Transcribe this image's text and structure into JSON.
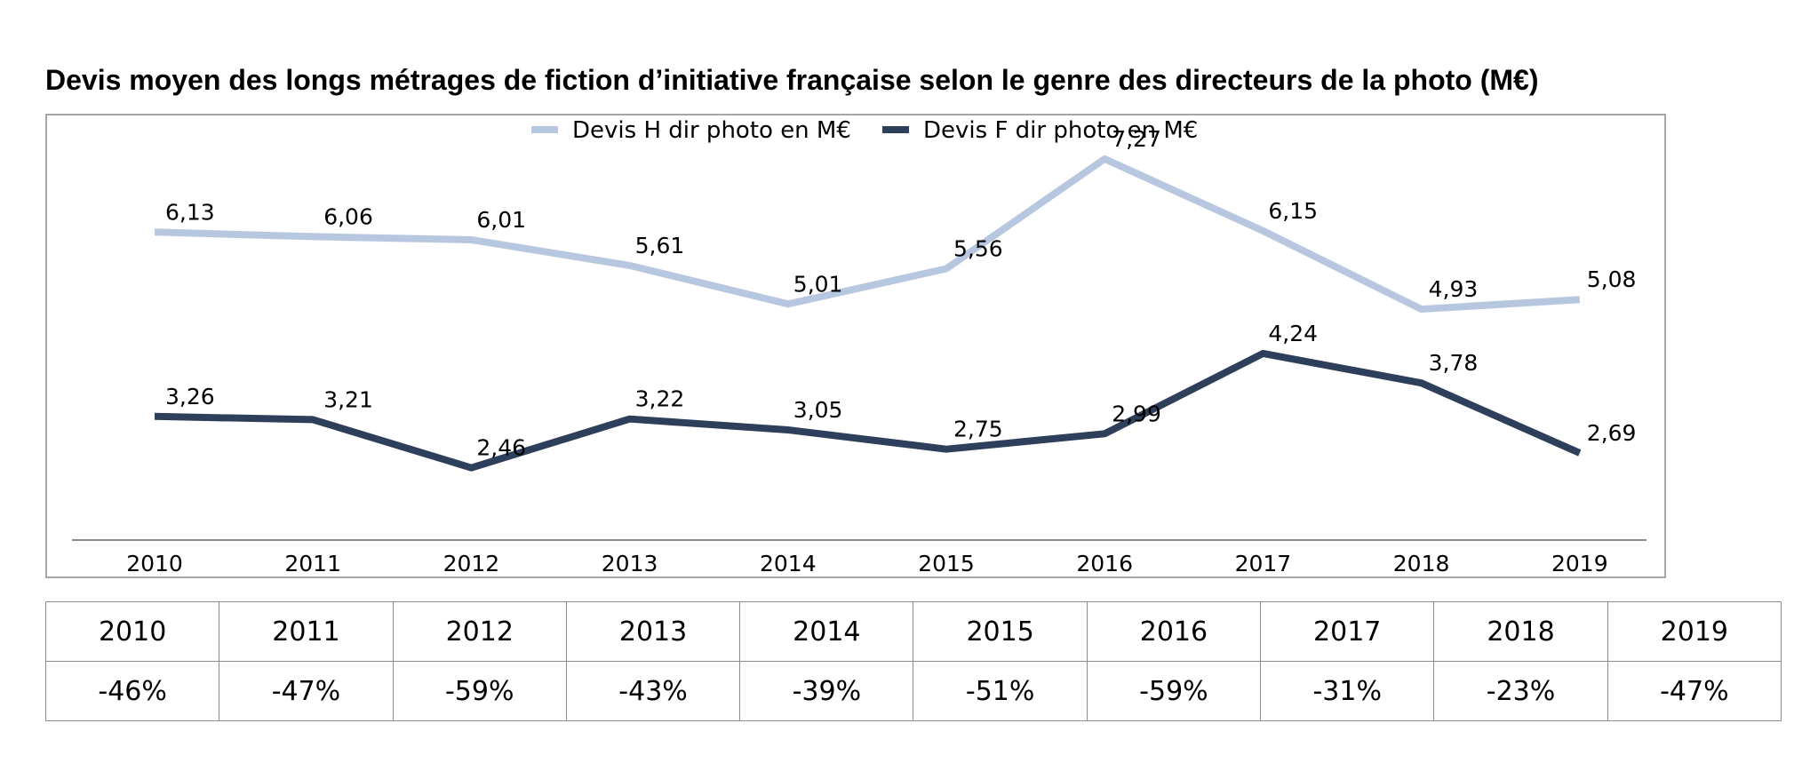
{
  "chart_data": {
    "type": "line",
    "title": "Devis moyen des longs métrages de fiction d’initiative française selon le genre des directeurs de la photo (M€)",
    "xlabel": "",
    "ylabel": "",
    "categories": [
      "2010",
      "2011",
      "2012",
      "2013",
      "2014",
      "2015",
      "2016",
      "2017",
      "2018",
      "2019"
    ],
    "value_labels": {
      "h": [
        "6,13",
        "6,06",
        "6,01",
        "5,61",
        "5,01",
        "5,56",
        "7,27",
        "6,15",
        "4,93",
        "5,08"
      ],
      "f": [
        "3,26",
        "3,21",
        "2,46",
        "3,22",
        "3,05",
        "2,75",
        "2,99",
        "4,24",
        "3,78",
        "2,69"
      ]
    },
    "series": [
      {
        "name": "Devis H dir photo en M€",
        "color": "#b8c7e0",
        "values": [
          6.13,
          6.06,
          6.01,
          5.61,
          5.01,
          5.56,
          7.27,
          6.15,
          4.93,
          5.08
        ]
      },
      {
        "name": "Devis F dir photo en M€",
        "color": "#2e3f5c",
        "values": [
          3.26,
          3.21,
          2.46,
          3.22,
          3.05,
          2.75,
          2.99,
          4.24,
          3.78,
          2.69
        ]
      }
    ],
    "ylim": [
      0,
      9
    ],
    "grid": false,
    "legend": "top-center",
    "data_labels": true
  },
  "table": {
    "years": [
      "2010",
      "2011",
      "2012",
      "2013",
      "2014",
      "2015",
      "2016",
      "2017",
      "2018",
      "2019"
    ],
    "values": [
      "-46%",
      "-47%",
      "-59%",
      "-43%",
      "-39%",
      "-51%",
      "-59%",
      "-31%",
      "-23%",
      "-47%"
    ]
  }
}
